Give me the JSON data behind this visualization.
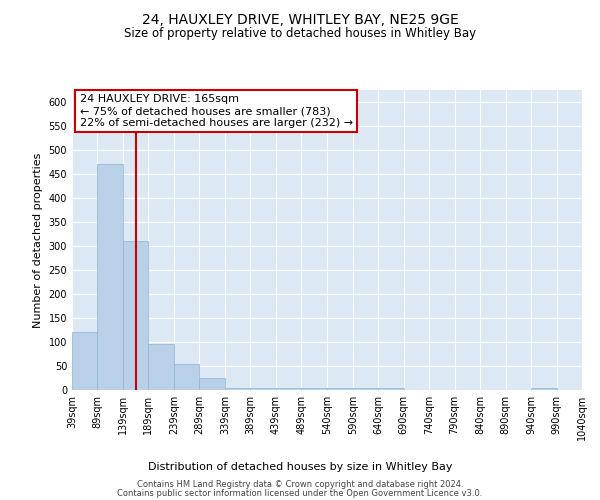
{
  "title": "24, HAUXLEY DRIVE, WHITLEY BAY, NE25 9GE",
  "subtitle": "Size of property relative to detached houses in Whitley Bay",
  "xlabel": "Distribution of detached houses by size in Whitley Bay",
  "ylabel": "Number of detached properties",
  "footnote1": "Contains HM Land Registry data © Crown copyright and database right 2024.",
  "footnote2": "Contains public sector information licensed under the Open Government Licence v3.0.",
  "annotation_line1": "24 HAUXLEY DRIVE: 165sqm",
  "annotation_line2": "← 75% of detached houses are smaller (783)",
  "annotation_line3": "22% of semi-detached houses are larger (232) →",
  "bar_color": "#b8d0e8",
  "bar_edge_color": "#8eb4d0",
  "property_line_color": "#cc0000",
  "annotation_box_edge": "#cc0000",
  "bins": [
    39,
    89,
    139,
    189,
    239,
    289,
    339,
    389,
    439,
    489,
    540,
    590,
    640,
    690,
    740,
    790,
    840,
    890,
    940,
    990,
    1040
  ],
  "counts": [
    120,
    470,
    310,
    95,
    55,
    25,
    5,
    5,
    5,
    5,
    5,
    5,
    5,
    0,
    0,
    0,
    0,
    0,
    5,
    0
  ],
  "property_size": 165,
  "ylim": [
    0,
    625
  ],
  "yticks": [
    0,
    50,
    100,
    150,
    200,
    250,
    300,
    350,
    400,
    450,
    500,
    550,
    600
  ],
  "background_color": "#ffffff",
  "plot_bg_color": "#dce9f5",
  "title_fontsize": 10,
  "subtitle_fontsize": 8.5,
  "ylabel_fontsize": 8,
  "xlabel_fontsize": 8,
  "tick_fontsize": 7,
  "footnote_fontsize": 6,
  "annotation_fontsize": 8
}
